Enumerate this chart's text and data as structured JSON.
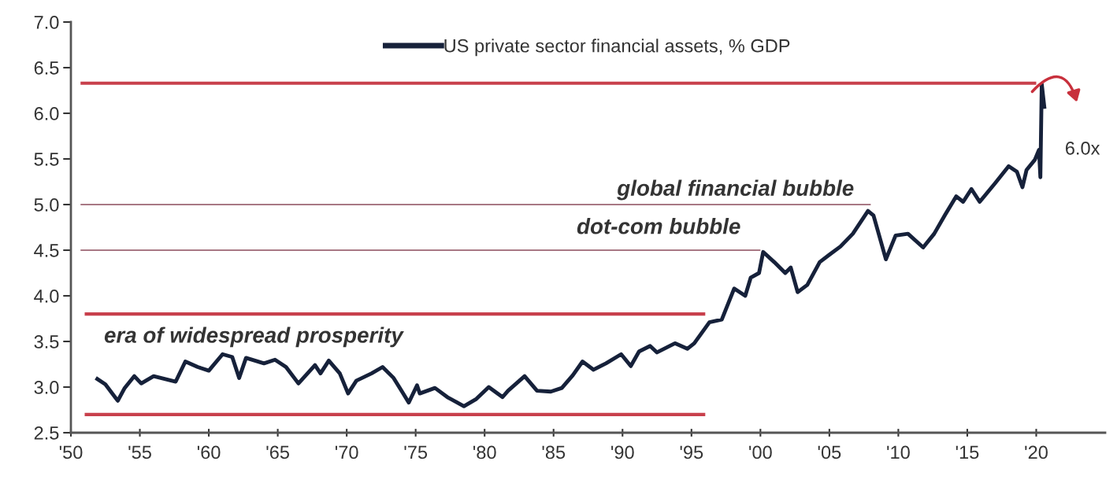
{
  "chart_data": {
    "type": "line",
    "xlim": [
      1950,
      2025
    ],
    "ylim": [
      2.5,
      7.0
    ],
    "xticks": [
      {
        "value": 1950,
        "label": "'50"
      },
      {
        "value": 1955,
        "label": "'55"
      },
      {
        "value": 1960,
        "label": "'60"
      },
      {
        "value": 1965,
        "label": "'65"
      },
      {
        "value": 1970,
        "label": "'70"
      },
      {
        "value": 1975,
        "label": "'75"
      },
      {
        "value": 1980,
        "label": "'80"
      },
      {
        "value": 1985,
        "label": "'85"
      },
      {
        "value": 1990,
        "label": "'90"
      },
      {
        "value": 1995,
        "label": "'95"
      },
      {
        "value": 2000,
        "label": "'00"
      },
      {
        "value": 2005,
        "label": "'05"
      },
      {
        "value": 2010,
        "label": "'10"
      },
      {
        "value": 2015,
        "label": "'15"
      },
      {
        "value": 2020,
        "label": "'20"
      }
    ],
    "yticks": [
      {
        "value": 2.5,
        "label": "2.5"
      },
      {
        "value": 3.0,
        "label": "3.0"
      },
      {
        "value": 3.5,
        "label": "3.5"
      },
      {
        "value": 4.0,
        "label": "4.0"
      },
      {
        "value": 4.5,
        "label": "4.5"
      },
      {
        "value": 5.0,
        "label": "5.0"
      },
      {
        "value": 5.5,
        "label": "5.5"
      },
      {
        "value": 6.0,
        "label": "6.0"
      },
      {
        "value": 6.5,
        "label": "6.5"
      },
      {
        "value": 7.0,
        "label": "7.0"
      }
    ],
    "grid": false,
    "legend": "top",
    "marker": "none",
    "line_style": "solid",
    "series": [
      {
        "name": "US private sector financial assets, % GDP",
        "color": "#16213a",
        "x": [
          1951.8,
          1952.5,
          1953.4,
          1953.9,
          1954.6,
          1955.1,
          1956.0,
          1957.6,
          1958.3,
          1959.2,
          1960.0,
          1961.0,
          1961.7,
          1962.2,
          1962.7,
          1964.0,
          1964.8,
          1965.6,
          1966.5,
          1967.7,
          1968.1,
          1968.7,
          1969.5,
          1970.1,
          1970.7,
          1971.8,
          1972.6,
          1973.4,
          1974.5,
          1975.1,
          1975.3,
          1976.4,
          1977.3,
          1978.5,
          1979.4,
          1980.3,
          1981.3,
          1981.7,
          1982.9,
          1983.8,
          1984.8,
          1985.6,
          1986.4,
          1987.1,
          1987.9,
          1988.8,
          1989.9,
          1990.6,
          1991.2,
          1992.0,
          1992.5,
          1993.8,
          1994.7,
          1995.2,
          1996.3,
          1997.2,
          1998.1,
          1998.9,
          1999.3,
          1999.9,
          2000.2,
          2001.0,
          2001.8,
          2002.2,
          2002.7,
          2003.4,
          2004.3,
          2005.0,
          2005.8,
          2006.7,
          2007.8,
          2008.2,
          2009.1,
          2009.8,
          2010.7,
          2011.8,
          2012.6,
          2013.4,
          2014.2,
          2014.7,
          2015.3,
          2015.9,
          2017.0,
          2018.0,
          2018.6,
          2019.0,
          2019.3,
          2019.9,
          2020.2,
          2020.3,
          2020.4,
          2020.6
        ],
        "values": [
          3.1,
          3.03,
          2.85,
          2.99,
          3.12,
          3.04,
          3.12,
          3.06,
          3.28,
          3.22,
          3.18,
          3.36,
          3.33,
          3.1,
          3.32,
          3.26,
          3.3,
          3.22,
          3.04,
          3.24,
          3.15,
          3.29,
          3.15,
          2.93,
          3.07,
          3.15,
          3.22,
          3.1,
          2.83,
          3.02,
          2.93,
          2.99,
          2.89,
          2.79,
          2.87,
          3.0,
          2.89,
          2.96,
          3.12,
          2.96,
          2.95,
          2.99,
          3.13,
          3.28,
          3.19,
          3.26,
          3.36,
          3.23,
          3.39,
          3.45,
          3.38,
          3.48,
          3.42,
          3.48,
          3.71,
          3.74,
          4.08,
          4.0,
          4.2,
          4.25,
          4.48,
          4.37,
          4.25,
          4.31,
          4.04,
          4.12,
          4.37,
          4.45,
          4.54,
          4.68,
          4.93,
          4.88,
          4.4,
          4.66,
          4.68,
          4.53,
          4.68,
          4.89,
          5.09,
          5.03,
          5.17,
          5.03,
          5.23,
          5.42,
          5.36,
          5.19,
          5.38,
          5.49,
          5.6,
          5.3,
          6.32,
          6.05
        ]
      },
      {
        "color": "#c8404c",
        "x": [
          1950.7,
          2020.0
        ],
        "values": [
          6.33,
          6.33
        ]
      },
      {
        "color": "#c8404c",
        "x": [
          1951.0,
          1996.0
        ],
        "values": [
          3.8,
          3.8
        ]
      },
      {
        "color": "#c8404c",
        "x": [
          1951.0,
          1996.0
        ],
        "values": [
          2.7,
          2.7
        ]
      },
      {
        "color": "#a87884",
        "x": [
          1950.7,
          2008.0
        ],
        "values": [
          5.0,
          5.0
        ]
      },
      {
        "color": "#a87884",
        "x": [
          1950.7,
          2000.0
        ],
        "values": [
          4.5,
          4.5
        ]
      }
    ],
    "annotations": [
      "era of widespread prosperity",
      "dot-com bubble",
      "global financial bubble",
      "6.0x"
    ]
  }
}
